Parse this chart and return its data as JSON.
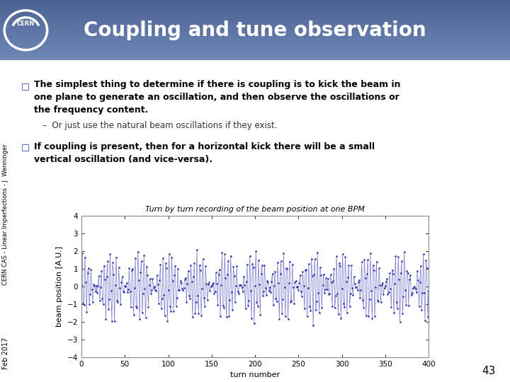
{
  "title": "Coupling and tune observation",
  "header_gradient_top": "#8090b8",
  "header_gradient_bot": "#4a6090",
  "slide_bg_color": "#ffffff",
  "bullet_color": "#2244aa",
  "bullet1_line1": "The simplest thing to determine if there is coupling is to kick the beam in",
  "bullet1_line2": "one plane to generate an oscillation, and then observe the oscillations or",
  "bullet1_line3": "the frequency content.",
  "bullet1_sub": "–  Or just use the natural beam oscillations if they exist.",
  "bullet2_line1": "If coupling is present, then for a horizontal kick there will be a small",
  "bullet2_line2": "vertical oscillation (and vice-versa).",
  "plot_title": "Turn by turn recording of the beam position at one BPM",
  "xlabel": "turn number",
  "ylabel": "beam position [A.U.]",
  "ylim": [
    -4,
    4
  ],
  "xlim": [
    0,
    400
  ],
  "line_color": "#7777cc",
  "marker_color": "#3333aa",
  "slide_number": "43",
  "left_label": "CERN CAS - Linear Imperfections - J. Wenninger",
  "bottom_label": "Feb 2017",
  "seed": 42,
  "n_turns": 401,
  "freq1": 0.31,
  "freq2": 0.28,
  "amplitude": 1.0,
  "noise": 0.15
}
